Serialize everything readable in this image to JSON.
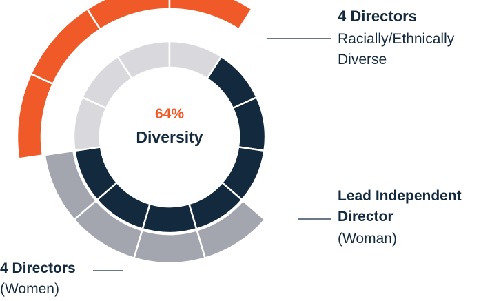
{
  "chart_data": {
    "type": "donut",
    "center": {
      "value": "64%",
      "label": "Diversity"
    },
    "inner_ring": {
      "segments": 11,
      "diverse_count": 7,
      "colors": {
        "diverse": "#13293d",
        "other": "#d9d9dd"
      }
    },
    "outer_arcs": [
      {
        "name": "Racially/Ethnically Diverse",
        "count": 4,
        "color": "#a3a6ae",
        "start_segment": 10,
        "label": {
          "title": "4 Directors",
          "lines": [
            "Racially/Ethnically",
            "Diverse"
          ]
        }
      },
      {
        "name": "Women",
        "count": 4,
        "color": "#f05a28",
        "start_segment": 3,
        "label": {
          "title": "4 Directors",
          "lines": [
            "(Women)"
          ]
        }
      }
    ],
    "annotations": [
      {
        "title_lines": [
          "Lead Independent",
          "Director"
        ],
        "lines": [
          "(Woman)"
        ]
      }
    ],
    "colors": {
      "text": "#13293d",
      "accent": "#f05a28",
      "line": "#13293d"
    }
  }
}
